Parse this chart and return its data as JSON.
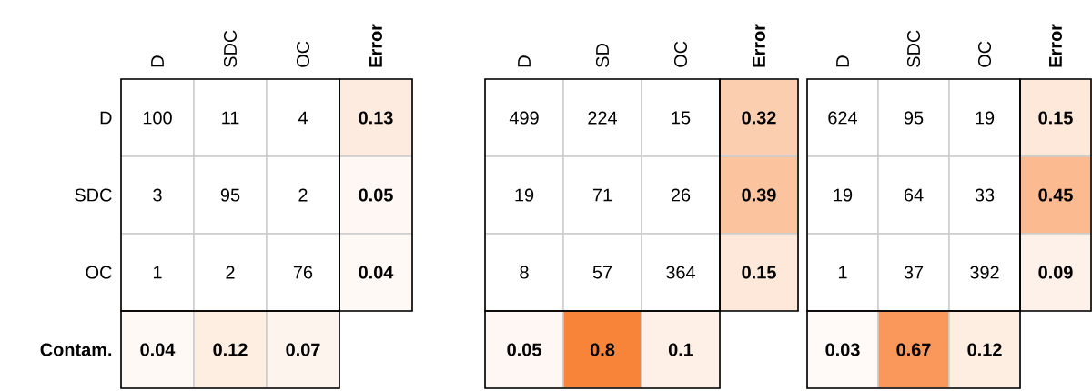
{
  "chart_data": [
    {
      "type": "heatmap",
      "categories": [
        "D",
        "SDC",
        "OC",
        "Error"
      ],
      "y_categories": [
        "D",
        "SDC",
        "OC",
        "Contam."
      ],
      "cells": [
        [
          100,
          11,
          4,
          0.13
        ],
        [
          3,
          95,
          2,
          0.05
        ],
        [
          1,
          2,
          76,
          0.04
        ],
        [
          0.04,
          0.12,
          0.07,
          null
        ]
      ],
      "color": "#f8843a",
      "data_labels": true
    },
    {
      "type": "heatmap",
      "categories": [
        "D",
        "SD",
        "OC",
        "Error"
      ],
      "y_categories": [
        null,
        null,
        null,
        null
      ],
      "cells": [
        [
          499,
          224,
          15,
          0.32
        ],
        [
          19,
          71,
          26,
          0.39
        ],
        [
          8,
          57,
          364,
          0.15
        ],
        [
          0.05,
          0.8,
          0.1,
          null
        ]
      ],
      "color": "#f8843a",
      "data_labels": true,
      "tick_labels": "x"
    },
    {
      "type": "heatmap",
      "categories": [
        "D",
        "SDC",
        "OC",
        "Error"
      ],
      "y_categories": [
        null,
        null,
        null,
        null
      ],
      "cells": [
        [
          624,
          95,
          19,
          0.15
        ],
        [
          19,
          64,
          33,
          0.45
        ],
        [
          1,
          37,
          392,
          0.09
        ],
        [
          0.03,
          0.67,
          0.12,
          null
        ]
      ],
      "color": "#f8843a",
      "data_labels": true,
      "tick_labels": "x"
    }
  ]
}
